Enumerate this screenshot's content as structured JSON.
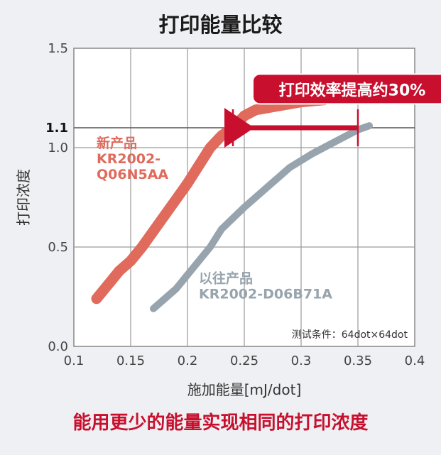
{
  "chart_data": {
    "type": "line",
    "title": "打印能量比较",
    "footer": "能用更少的能量实现相同的打印浓度",
    "xlabel": "施加能量[mJ/dot]",
    "ylabel": "打印浓度",
    "xlim": [
      0.1,
      0.4
    ],
    "ylim": [
      0.0,
      1.5
    ],
    "x_ticks": [
      "0.1",
      "0.15",
      "0.2",
      "0.25",
      "0.3",
      "0.35",
      "0.4"
    ],
    "y_ticks": [
      {
        "value": 0.0,
        "label": "0.0"
      },
      {
        "value": 0.5,
        "label": "0.5"
      },
      {
        "value": 1.0,
        "label": "1.0"
      },
      {
        "value": 1.1,
        "label": "1.1",
        "bold": true
      },
      {
        "value": 1.5,
        "label": "1.5"
      }
    ],
    "grid": {
      "x": true,
      "y": true
    },
    "series": [
      {
        "name": "新产品\nKR2002-\nQ06N5AA",
        "label_lines": [
          "新产品",
          "KR2002-",
          "Q06N5AA"
        ],
        "color": "#e06a5c",
        "points": [
          [
            0.12,
            0.24
          ],
          [
            0.13,
            0.31
          ],
          [
            0.14,
            0.38
          ],
          [
            0.15,
            0.43
          ],
          [
            0.16,
            0.5
          ],
          [
            0.17,
            0.58
          ],
          [
            0.18,
            0.66
          ],
          [
            0.19,
            0.74
          ],
          [
            0.2,
            0.82
          ],
          [
            0.21,
            0.91
          ],
          [
            0.22,
            1.0
          ],
          [
            0.23,
            1.06
          ],
          [
            0.24,
            1.1
          ],
          [
            0.25,
            1.16
          ],
          [
            0.26,
            1.19
          ],
          [
            0.28,
            1.21
          ],
          [
            0.3,
            1.23
          ],
          [
            0.32,
            1.24
          ],
          [
            0.34,
            1.27
          ]
        ]
      },
      {
        "name": "以往产品\nKR2002-D06B71A",
        "label_lines": [
          "以往产品",
          "KR2002-D06B71A"
        ],
        "color": "#97a4ae",
        "points": [
          [
            0.17,
            0.19
          ],
          [
            0.18,
            0.24
          ],
          [
            0.19,
            0.29
          ],
          [
            0.2,
            0.36
          ],
          [
            0.21,
            0.43
          ],
          [
            0.22,
            0.5
          ],
          [
            0.23,
            0.59
          ],
          [
            0.25,
            0.7
          ],
          [
            0.27,
            0.8
          ],
          [
            0.29,
            0.9
          ],
          [
            0.31,
            0.97
          ],
          [
            0.33,
            1.03
          ],
          [
            0.35,
            1.09
          ],
          [
            0.36,
            1.11
          ]
        ]
      }
    ],
    "annotation": {
      "text": "打印效率提高约30%",
      "color": "#c8102e",
      "arrow": {
        "y": 1.1,
        "from_x": 0.35,
        "to_x": 0.24
      }
    },
    "note": "测试条件：64dot×64dot"
  }
}
